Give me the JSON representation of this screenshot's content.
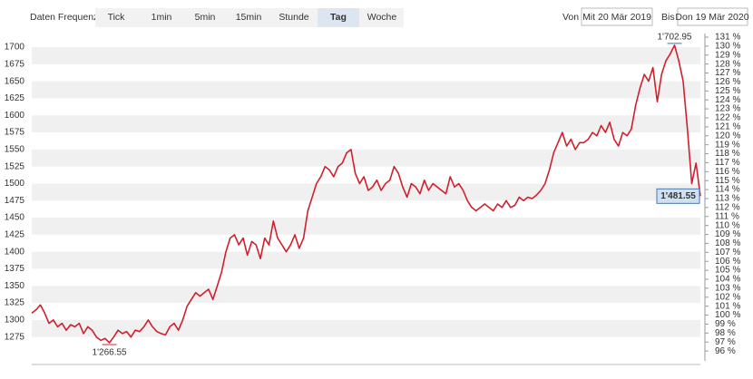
{
  "toolbar": {
    "label": "Daten Frequenz",
    "buttons": [
      "Tick",
      "1min",
      "5min",
      "15min",
      "Stunde",
      "Tag",
      "Woche"
    ],
    "active": "Tag",
    "from_label": "Von",
    "from_date": "Mit 20 Mär 2019",
    "to_label": "Bis",
    "to_date": "Don 19 Mär 2020"
  },
  "chart_data": {
    "type": "line",
    "color": "#d0202e",
    "values": [
      1310,
      1315,
      1322,
      1310,
      1295,
      1300,
      1290,
      1295,
      1285,
      1293,
      1290,
      1295,
      1280,
      1290,
      1285,
      1275,
      1270,
      1273,
      1266.55,
      1275,
      1285,
      1280,
      1283,
      1275,
      1285,
      1283,
      1290,
      1300,
      1290,
      1283,
      1280,
      1278,
      1290,
      1295,
      1285,
      1300,
      1320,
      1330,
      1340,
      1335,
      1340,
      1345,
      1330,
      1350,
      1370,
      1400,
      1420,
      1425,
      1410,
      1420,
      1395,
      1415,
      1410,
      1390,
      1420,
      1410,
      1445,
      1420,
      1410,
      1400,
      1410,
      1425,
      1405,
      1420,
      1460,
      1480,
      1500,
      1510,
      1525,
      1520,
      1510,
      1525,
      1530,
      1545,
      1550,
      1515,
      1500,
      1510,
      1490,
      1495,
      1505,
      1490,
      1500,
      1505,
      1525,
      1515,
      1495,
      1480,
      1500,
      1495,
      1485,
      1505,
      1490,
      1500,
      1495,
      1490,
      1485,
      1510,
      1495,
      1500,
      1490,
      1475,
      1465,
      1460,
      1465,
      1470,
      1465,
      1460,
      1470,
      1465,
      1475,
      1465,
      1468,
      1480,
      1475,
      1480,
      1478,
      1483,
      1490,
      1500,
      1520,
      1545,
      1560,
      1575,
      1555,
      1565,
      1550,
      1560,
      1560,
      1565,
      1575,
      1570,
      1585,
      1575,
      1590,
      1565,
      1555,
      1575,
      1570,
      1580,
      1615,
      1640,
      1660,
      1650,
      1670,
      1620,
      1660,
      1680,
      1690,
      1702.95,
      1680,
      1650,
      1580,
      1500,
      1530,
      1481.55
    ],
    "ylim": [
      1240,
      1720
    ],
    "yticks": [
      1275,
      1300,
      1325,
      1350,
      1375,
      1400,
      1425,
      1450,
      1475,
      1500,
      1525,
      1550,
      1575,
      1600,
      1625,
      1650,
      1675,
      1700
    ],
    "y2lim": [
      94.9,
      131.4
    ],
    "y2ticks": [
      {
        "value": 96,
        "label": "96 %"
      },
      {
        "value": 97,
        "label": "97 %"
      },
      {
        "value": 98,
        "label": "98 %"
      },
      {
        "value": 99,
        "label": "99 %"
      },
      {
        "value": 100,
        "label": "100 %"
      },
      {
        "value": 101,
        "label": "101 %"
      },
      {
        "value": 102,
        "label": "102 %"
      },
      {
        "value": 103,
        "label": "103 %"
      },
      {
        "value": 104,
        "label": "104 %"
      },
      {
        "value": 105,
        "label": "105 %"
      },
      {
        "value": 106,
        "label": "106 %"
      },
      {
        "value": 107,
        "label": "107 %"
      },
      {
        "value": 108,
        "label": "108 %"
      },
      {
        "value": 109,
        "label": "109 %"
      },
      {
        "value": 110,
        "label": "110 %"
      },
      {
        "value": 111,
        "label": "111 %"
      },
      {
        "value": 112,
        "label": "112 %"
      },
      {
        "value": 113,
        "label": "113 %"
      },
      {
        "value": 114,
        "label": "114 %"
      },
      {
        "value": 115,
        "label": "115 %"
      },
      {
        "value": 116,
        "label": "116 %"
      },
      {
        "value": 117,
        "label": "117 %"
      },
      {
        "value": 118,
        "label": "118 %"
      },
      {
        "value": 119,
        "label": "119 %"
      },
      {
        "value": 120,
        "label": "120 %"
      },
      {
        "value": 121,
        "label": "121 %"
      },
      {
        "value": 122,
        "label": "122 %"
      },
      {
        "value": 123,
        "label": "123 %"
      },
      {
        "value": 124,
        "label": "124 %"
      },
      {
        "value": 125,
        "label": "125 %"
      },
      {
        "value": 126,
        "label": "126 %"
      },
      {
        "value": 127,
        "label": "127 %"
      },
      {
        "value": 128,
        "label": "128 %"
      },
      {
        "value": 129,
        "label": "129 %"
      },
      {
        "value": 130,
        "label": "130 %"
      },
      {
        "value": 131,
        "label": "131 %"
      }
    ],
    "grid": "bands",
    "annotations": {
      "max": {
        "value": 1702.95,
        "label": "1'702.95"
      },
      "min": {
        "value": 1266.55,
        "label": "1'266.55"
      },
      "last": {
        "value": 1481.55,
        "label": "1'481.55"
      }
    }
  }
}
